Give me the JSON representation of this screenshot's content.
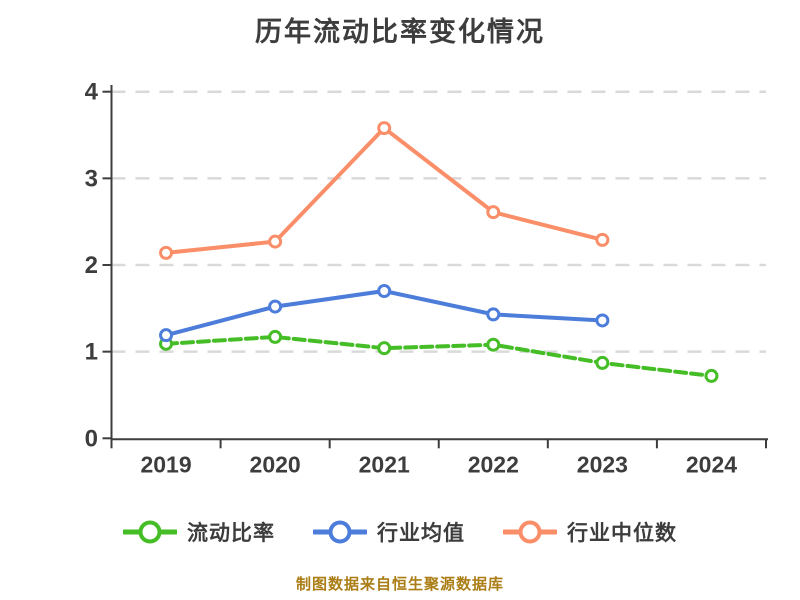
{
  "page": {
    "background": "#ffffff"
  },
  "header": {
    "title": "历年流动比率变化情况"
  },
  "footer": {
    "caption": "制图数据来自恒生聚源数据库",
    "color": "#aa7d15"
  },
  "chart_data": {
    "type": "line",
    "title": "历年流动比率变化情况",
    "categories": [
      "2019",
      "2020",
      "2021",
      "2022",
      "2023",
      "2024"
    ],
    "series": [
      {
        "name": "流动比率",
        "color": "#45bd26",
        "line_style": "dashed",
        "marker": "circle",
        "values": [
          1.09,
          1.17,
          1.04,
          1.08,
          0.87,
          0.72
        ]
      },
      {
        "name": "行业均值",
        "color": "#4d7dda",
        "line_style": "solid",
        "marker": "circle",
        "values": [
          1.19,
          1.52,
          1.7,
          1.43,
          1.36,
          null
        ]
      },
      {
        "name": "行业中位数",
        "color": "#fa8e68",
        "line_style": "solid",
        "marker": "circle",
        "values": [
          2.14,
          2.27,
          3.58,
          2.61,
          2.29,
          null
        ]
      }
    ],
    "xlabel": "",
    "ylabel": "",
    "ylim": [
      0,
      4
    ],
    "yticks": [
      0,
      1,
      2,
      3,
      4
    ],
    "grid": "horizontal-dashed",
    "legend_position": "bottom",
    "marker_fill": "#ffffff",
    "axis_color": "#3d3d3d",
    "grid_color": "#d9d9d9",
    "tick_label_color": "#3d3d3d"
  }
}
